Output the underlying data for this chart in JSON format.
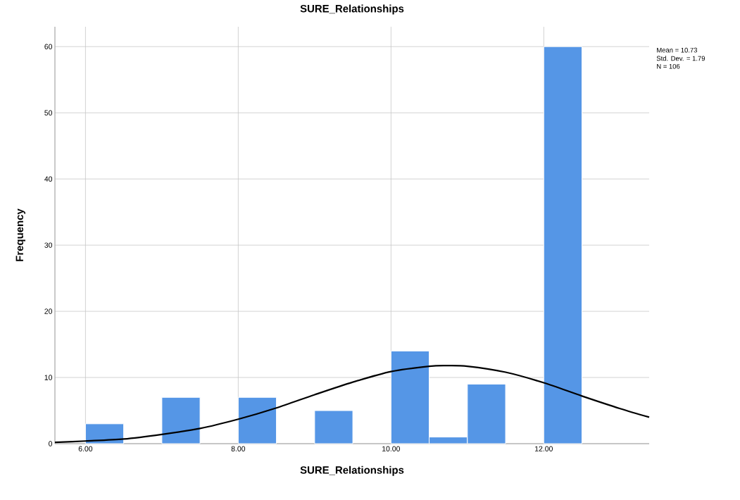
{
  "chart_data": {
    "type": "histogram",
    "title": "SURE_Relationships",
    "xlabel": "SURE_Relationships",
    "ylabel": "Frequency",
    "bins": [
      6.0,
      6.5,
      7.0,
      7.5,
      8.0,
      8.5,
      9.0,
      9.5,
      10.0,
      10.5,
      11.0,
      11.5,
      12.0,
      12.5
    ],
    "values": [
      3,
      0,
      7,
      0,
      7,
      0,
      5,
      0,
      14,
      1,
      9,
      0,
      60
    ],
    "color": "#5596e6",
    "series": [
      {
        "type": "line",
        "color": "#000000",
        "x": [
          5.6,
          6.0,
          6.5,
          7.0,
          7.5,
          8.0,
          8.5,
          9.0,
          9.5,
          10.0,
          10.5,
          10.73,
          11.0,
          11.5,
          12.0,
          12.5,
          13.0,
          13.38
        ],
        "values": [
          0.2,
          0.4,
          0.7,
          1.4,
          2.3,
          3.7,
          5.4,
          7.4,
          9.3,
          10.9,
          11.7,
          11.8,
          11.7,
          10.8,
          9.2,
          7.2,
          5.3,
          4.0
        ]
      }
    ],
    "xlim": [
      5.6,
      13.38
    ],
    "ylim": [
      0,
      63
    ],
    "xticks": [
      {
        "value": 6,
        "label": "6.00"
      },
      {
        "value": 8,
        "label": "8.00"
      },
      {
        "value": 10,
        "label": "10.00"
      },
      {
        "value": 12,
        "label": "12.00"
      }
    ],
    "yticks": [
      0,
      10,
      20,
      30,
      40,
      50,
      60
    ],
    "grid": true,
    "annotations": [
      "Mean = 10.73",
      "Std. Dev. = 1.79",
      "N = 106"
    ]
  }
}
